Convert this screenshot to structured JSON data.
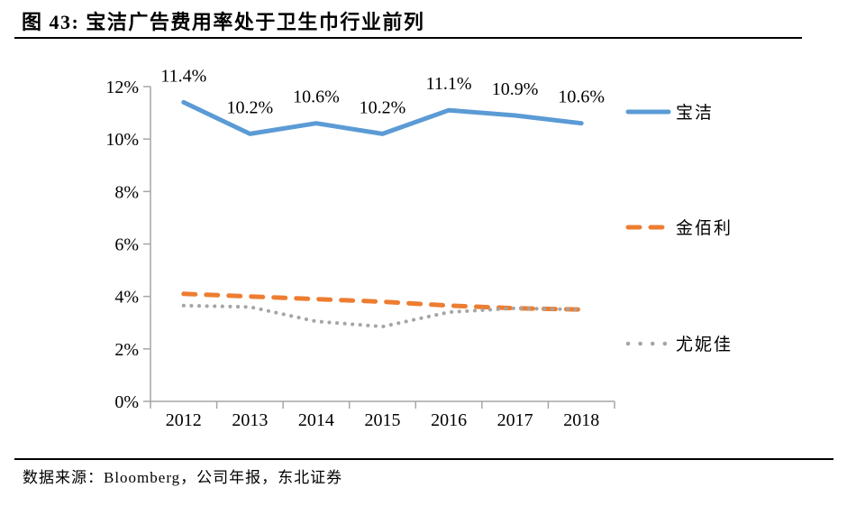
{
  "header": {
    "title": "图 43: 宝洁广告费用率处于卫生巾行业前列"
  },
  "footer": {
    "source": "数据来源：Bloomberg，公司年报，东北证券"
  },
  "chart_data": {
    "type": "line",
    "title": "图 43: 宝洁广告费用率处于卫生巾行业前列",
    "categories": [
      "2012",
      "2013",
      "2014",
      "2015",
      "2016",
      "2017",
      "2018"
    ],
    "series": [
      {
        "name": "宝洁",
        "color": "#5B9BD5",
        "line_style": "solid",
        "values": [
          11.4,
          10.2,
          10.6,
          10.2,
          11.1,
          10.9,
          10.6
        ],
        "point_labels": [
          "11.4%",
          "10.2%",
          "10.6%",
          "10.2%",
          "11.1%",
          "10.9%",
          "10.6%"
        ]
      },
      {
        "name": "金佰利",
        "color": "#ED7D31",
        "line_style": "dashed",
        "values": [
          4.1,
          4.0,
          3.9,
          3.8,
          3.65,
          3.55,
          3.5
        ]
      },
      {
        "name": "尤妮佳",
        "color": "#A5A5A5",
        "line_style": "dotted",
        "values": [
          3.65,
          3.6,
          3.05,
          2.85,
          3.4,
          3.55,
          3.5
        ]
      }
    ],
    "xlabel": "",
    "ylabel": "",
    "ylim": [
      0,
      12
    ],
    "ytick_step": 2,
    "ytick_labels": [
      "0%",
      "2%",
      "4%",
      "6%",
      "8%",
      "10%",
      "12%"
    ],
    "grid": false,
    "legend_position": "right",
    "axis_color": "#A6A6A6",
    "text_color": "#000000"
  }
}
